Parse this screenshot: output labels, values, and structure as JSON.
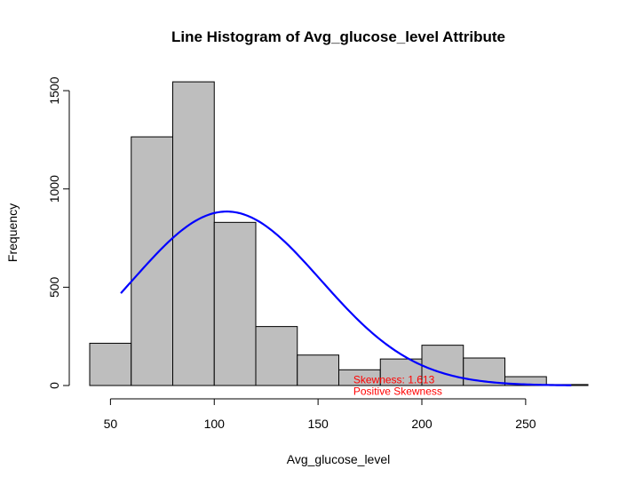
{
  "chart_data": {
    "type": "bar",
    "title": "Line Histogram of Avg_glucose_level Attribute",
    "xlabel": "Avg_glucose_level",
    "ylabel": "Frequency",
    "xlim": [
      40,
      280
    ],
    "ylim": [
      0,
      1550
    ],
    "x_ticks": [
      50,
      100,
      150,
      200,
      250
    ],
    "y_ticks": [
      0,
      500,
      1000,
      1500
    ],
    "bins": [
      {
        "x0": 40,
        "x1": 60,
        "count": 215
      },
      {
        "x0": 60,
        "x1": 80,
        "count": 1265
      },
      {
        "x0": 80,
        "x1": 100,
        "count": 1545
      },
      {
        "x0": 100,
        "x1": 120,
        "count": 830
      },
      {
        "x0": 120,
        "x1": 140,
        "count": 300
      },
      {
        "x0": 140,
        "x1": 160,
        "count": 155
      },
      {
        "x0": 160,
        "x1": 180,
        "count": 80
      },
      {
        "x0": 180,
        "x1": 200,
        "count": 135
      },
      {
        "x0": 200,
        "x1": 220,
        "count": 205
      },
      {
        "x0": 220,
        "x1": 240,
        "count": 140
      },
      {
        "x0": 240,
        "x1": 260,
        "count": 45
      },
      {
        "x0": 260,
        "x1": 280,
        "count": 5
      }
    ],
    "curve": {
      "type": "normal_density",
      "mean": 106,
      "sd": 45.3,
      "peak": 885,
      "x_range": [
        55,
        272
      ],
      "color": "#0000ff"
    },
    "annotations": [
      {
        "text": "Skewness: 1.613",
        "x": 167,
        "y": 30,
        "color": "#ff0000"
      },
      {
        "text": "Positive Skewness",
        "x": 167,
        "y": -30,
        "color": "#ff0000"
      }
    ],
    "bar_fill": "#bebebe",
    "bar_stroke": "#000000",
    "grid": false
  }
}
